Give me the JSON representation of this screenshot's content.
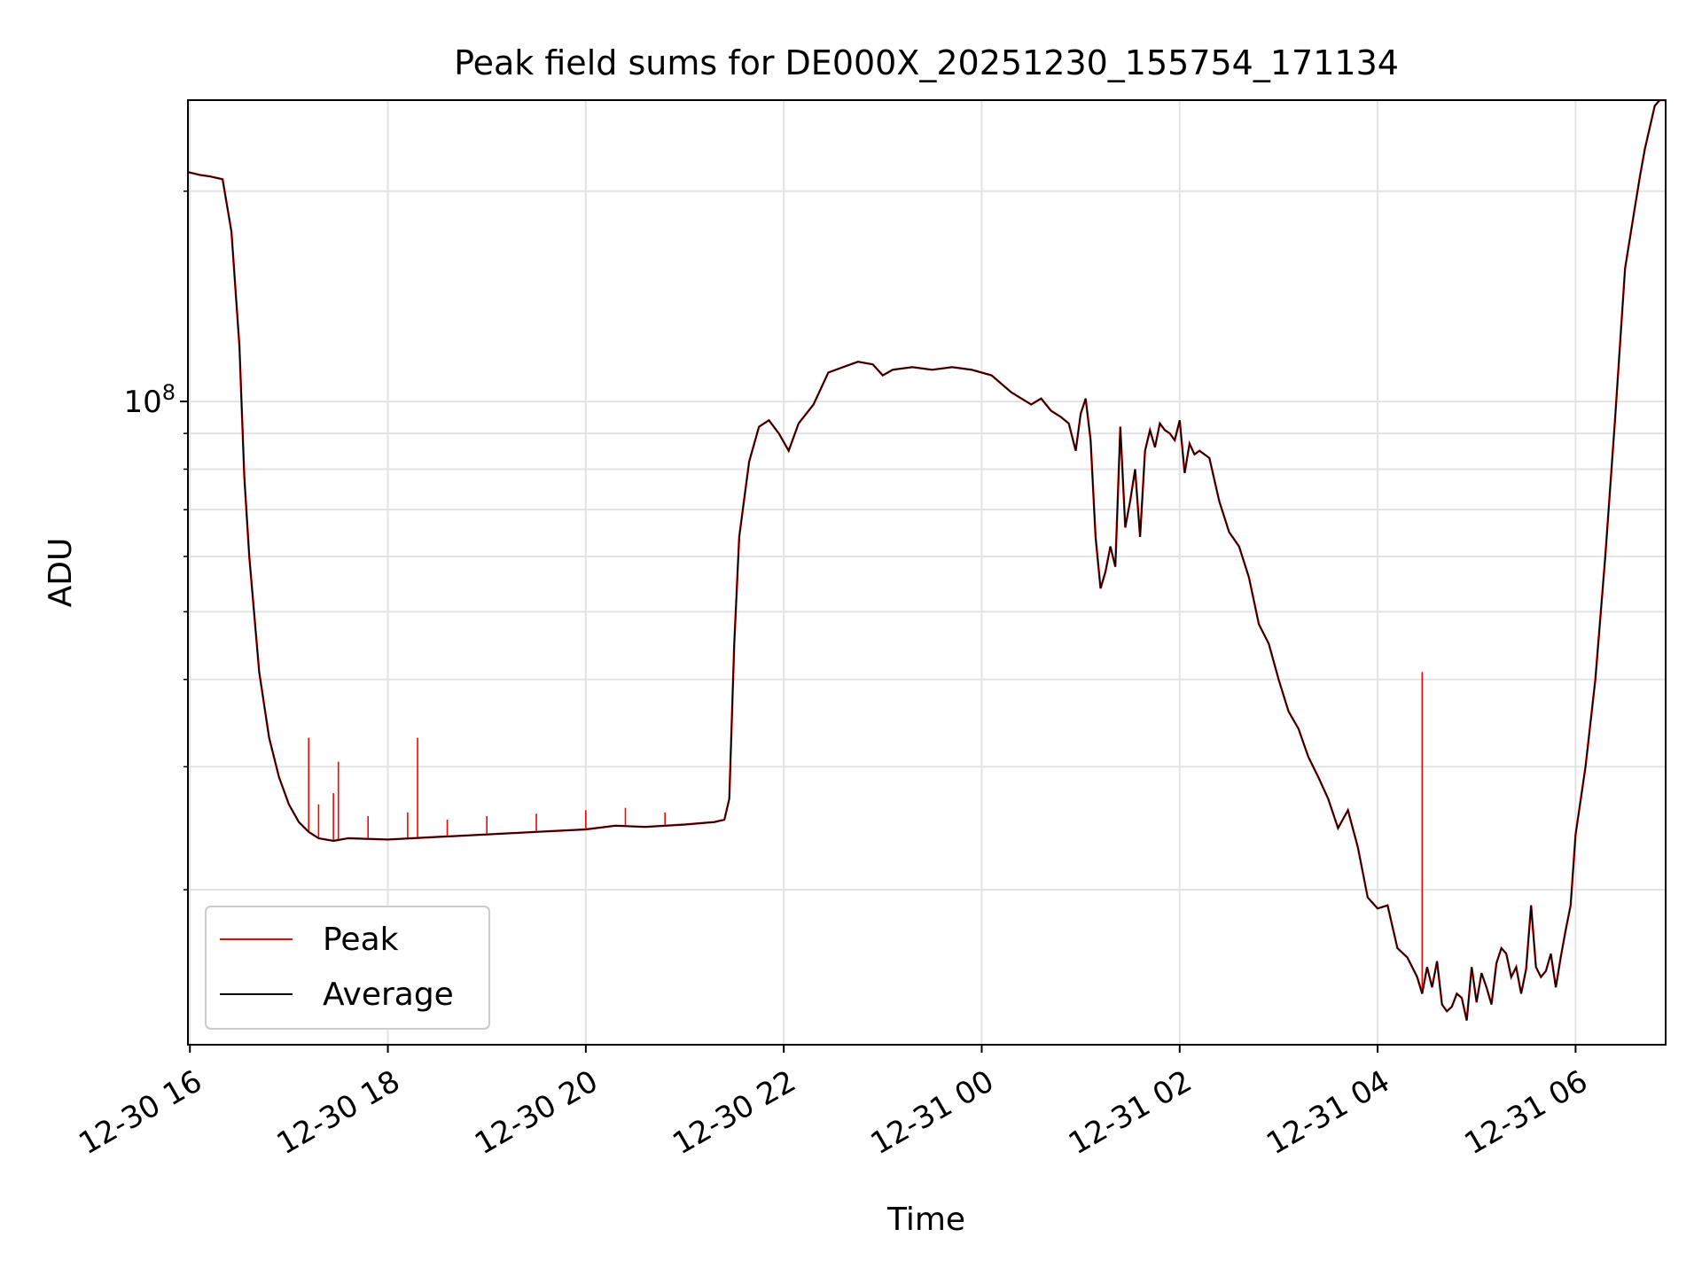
{
  "chart_data": {
    "type": "line",
    "title": "Peak field sums for DE000X_20251230_155754_171134",
    "xlabel": "Time",
    "ylabel": "ADU",
    "yscale": "log",
    "ylim": [
      12000000,
      270000000
    ],
    "xlim_hours": [
      15.98,
      30.91
    ],
    "grid": true,
    "x_ticks": [
      {
        "hour": 16,
        "label": "12-30 16"
      },
      {
        "hour": 18,
        "label": "12-30 18"
      },
      {
        "hour": 20,
        "label": "12-30 20"
      },
      {
        "hour": 22,
        "label": "12-30 22"
      },
      {
        "hour": 24,
        "label": "12-31 00"
      },
      {
        "hour": 26,
        "label": "12-31 02"
      },
      {
        "hour": 28,
        "label": "12-31 04"
      },
      {
        "hour": 30,
        "label": "12-31 06"
      }
    ],
    "y_major_tick": {
      "value": 100000000,
      "base": "10",
      "exponent": "8"
    },
    "y_minor_ticks": [
      20000000,
      30000000,
      40000000,
      50000000,
      60000000,
      70000000,
      80000000,
      90000000,
      200000000
    ],
    "legend": {
      "position": "lower-left",
      "entries": [
        "Peak",
        "Average"
      ]
    },
    "series": [
      {
        "name": "Average",
        "color": "#000000",
        "x": [
          15.98,
          16.1,
          16.2,
          16.33,
          16.42,
          16.5,
          16.55,
          16.6,
          16.7,
          16.8,
          16.9,
          17.0,
          17.1,
          17.2,
          17.3,
          17.45,
          17.6,
          18.0,
          18.5,
          19.0,
          19.5,
          20.0,
          20.3,
          20.6,
          21.0,
          21.3,
          21.4,
          21.45,
          21.5,
          21.55,
          21.65,
          21.75,
          21.85,
          21.95,
          22.05,
          22.15,
          22.3,
          22.45,
          22.6,
          22.75,
          22.9,
          23.0,
          23.1,
          23.3,
          23.5,
          23.7,
          23.9,
          24.1,
          24.3,
          24.5,
          24.6,
          24.7,
          24.8,
          24.88,
          24.95,
          25.0,
          25.05,
          25.1,
          25.15,
          25.2,
          25.25,
          25.3,
          25.35,
          25.4,
          25.45,
          25.5,
          25.55,
          25.6,
          25.65,
          25.7,
          25.75,
          25.8,
          25.85,
          25.9,
          25.95,
          26.0,
          26.05,
          26.1,
          26.15,
          26.2,
          26.3,
          26.4,
          26.5,
          26.6,
          26.7,
          26.8,
          26.9,
          27.0,
          27.1,
          27.2,
          27.3,
          27.4,
          27.5,
          27.6,
          27.7,
          27.8,
          27.9,
          28.0,
          28.1,
          28.2,
          28.3,
          28.4,
          28.45,
          28.5,
          28.55,
          28.6,
          28.65,
          28.7,
          28.75,
          28.8,
          28.85,
          28.9,
          28.95,
          29.0,
          29.05,
          29.1,
          29.15,
          29.2,
          29.25,
          29.3,
          29.35,
          29.4,
          29.45,
          29.5,
          29.55,
          29.6,
          29.65,
          29.7,
          29.75,
          29.8,
          29.85,
          29.9,
          29.95,
          30.0,
          30.1,
          30.2,
          30.3,
          30.4,
          30.5,
          30.6,
          30.65,
          30.7,
          30.8,
          30.85,
          30.91
        ],
        "values": [
          213000000,
          211000000,
          210000000,
          208000000,
          175000000,
          120000000,
          78000000,
          60000000,
          41000000,
          33000000,
          29000000,
          26500000,
          25000000,
          24200000,
          23700000,
          23500000,
          23700000,
          23600000,
          23800000,
          24000000,
          24200000,
          24400000,
          24700000,
          24600000,
          24800000,
          25000000,
          25200000,
          27000000,
          45000000,
          64000000,
          82000000,
          92000000,
          94000000,
          90000000,
          85000000,
          93000000,
          99000000,
          110000000,
          112000000,
          114000000,
          113000000,
          109000000,
          111000000,
          112000000,
          111000000,
          112000000,
          111000000,
          109000000,
          103000000,
          99000000,
          101000000,
          97000000,
          95000000,
          93000000,
          85000000,
          96000000,
          101000000,
          88000000,
          64000000,
          54000000,
          57000000,
          62000000,
          58000000,
          92000000,
          66000000,
          72000000,
          80000000,
          64000000,
          85000000,
          91000000,
          86000000,
          93000000,
          91000000,
          90000000,
          88000000,
          94000000,
          79000000,
          87000000,
          84000000,
          85000000,
          83000000,
          72000000,
          65000000,
          62000000,
          56000000,
          48000000,
          45000000,
          40000000,
          36000000,
          34000000,
          31000000,
          29000000,
          27000000,
          24500000,
          26000000,
          23000000,
          19500000,
          18800000,
          19000000,
          16500000,
          16000000,
          15000000,
          14200000,
          15500000,
          14500000,
          15800000,
          13700000,
          13400000,
          13600000,
          14200000,
          14000000,
          13000000,
          15500000,
          13800000,
          15200000,
          14500000,
          13700000,
          15700000,
          16500000,
          16200000,
          15000000,
          15500000,
          14200000,
          15400000,
          19000000,
          15500000,
          15000000,
          15300000,
          16200000,
          14500000,
          16000000,
          17500000,
          19000000,
          24000000,
          30000000,
          40000000,
          60000000,
          95000000,
          155000000,
          190000000,
          210000000,
          230000000,
          265000000,
          270000000,
          270000000
        ]
      },
      {
        "name": "Peak",
        "color": "#ff0000",
        "spikes": [
          {
            "hour": 17.2,
            "value": 33000000
          },
          {
            "hour": 17.3,
            "value": 26500000
          },
          {
            "hour": 17.45,
            "value": 27500000
          },
          {
            "hour": 17.5,
            "value": 30500000
          },
          {
            "hour": 17.8,
            "value": 25500000
          },
          {
            "hour": 18.2,
            "value": 25800000
          },
          {
            "hour": 18.3,
            "value": 33000000
          },
          {
            "hour": 18.6,
            "value": 25200000
          },
          {
            "hour": 19.0,
            "value": 25500000
          },
          {
            "hour": 19.5,
            "value": 25700000
          },
          {
            "hour": 20.0,
            "value": 26000000
          },
          {
            "hour": 20.4,
            "value": 26200000
          },
          {
            "hour": 20.8,
            "value": 25800000
          },
          {
            "hour": 28.45,
            "value": 41000000
          }
        ]
      }
    ]
  }
}
